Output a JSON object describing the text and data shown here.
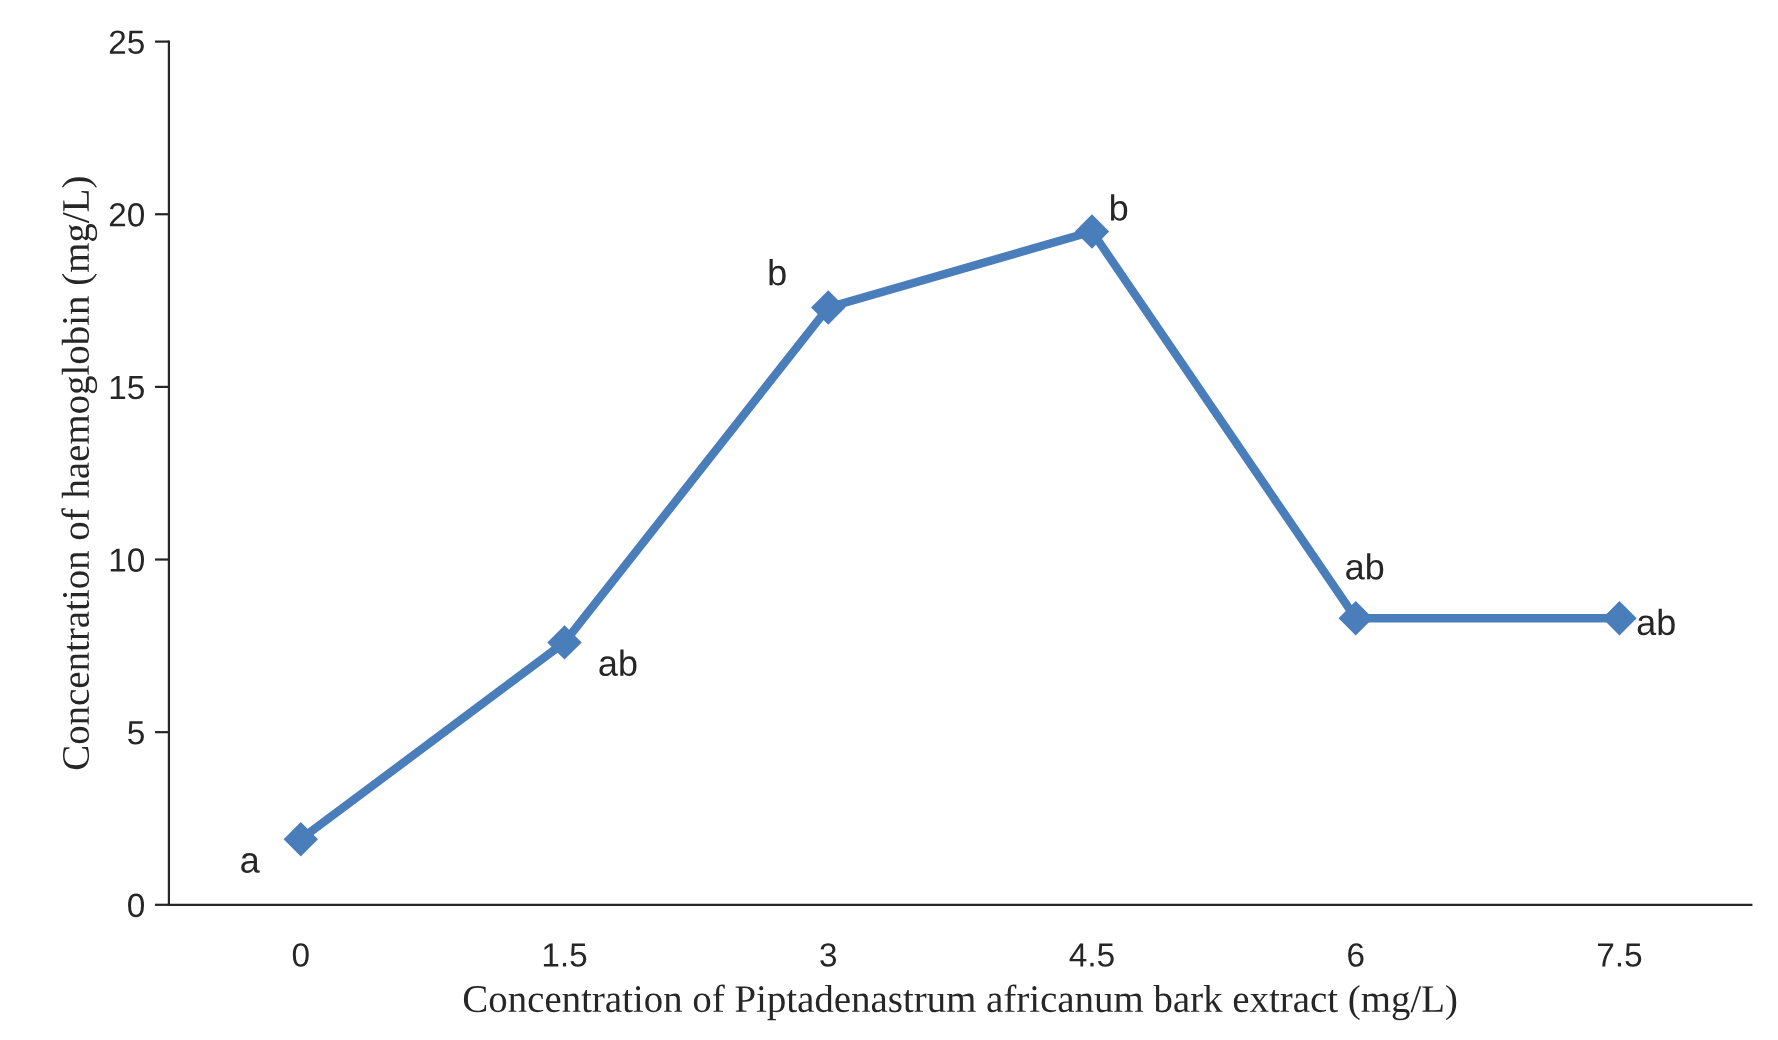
{
  "chart_data": {
    "type": "line",
    "xlabel": "Concentration of Piptadenastrum africanum bark extract (mg/L)",
    "ylabel": "Concentration of haemoglobin (mg/L)",
    "categories": [
      "0",
      "1.5",
      "3",
      "4.5",
      "6",
      "7.5"
    ],
    "series": [
      {
        "color": "#4a7ebb",
        "values": [
          1.9,
          7.6,
          17.3,
          19.5,
          8.3,
          8.3
        ]
      }
    ],
    "ylim": [
      0,
      25
    ],
    "yticks": [
      0,
      5,
      10,
      15,
      20,
      25
    ],
    "marker": "diamond",
    "line_style": "solid",
    "grid": false,
    "legend": false,
    "annotations": [
      {
        "text": "a",
        "x": "0",
        "y": 1.9
      },
      {
        "text": "ab",
        "x": "1.5",
        "y": 7.6
      },
      {
        "text": "b",
        "x": "3",
        "y": 17.3
      },
      {
        "text": "b",
        "x": "4.5",
        "y": 19.5
      },
      {
        "text": "ab",
        "x": "6",
        "y": 8.3
      },
      {
        "text": "ab",
        "x": "7.5",
        "y": 8.3
      }
    ]
  }
}
